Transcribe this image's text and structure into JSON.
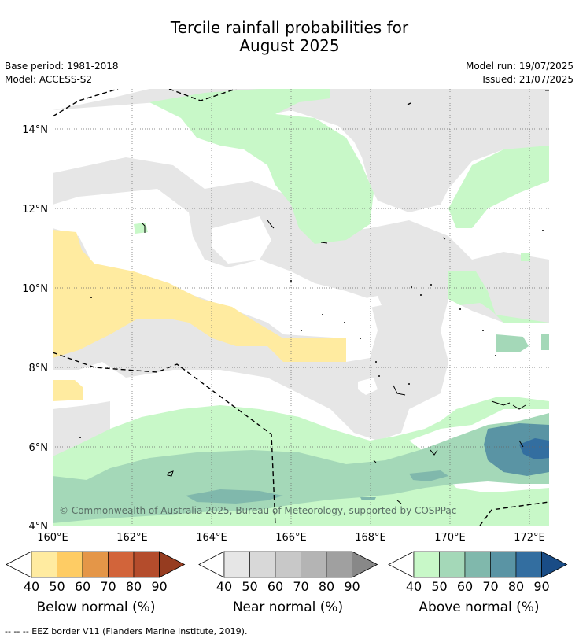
{
  "title_line1": "Tercile rainfall probabilities for",
  "title_line2": "August 2025",
  "base_period": "Base period: 1981-2018",
  "model": "Model: ACCESS-S2",
  "model_run": "Model run: 19/07/2025",
  "issued": "Issued: 21/07/2025",
  "copyright": "© Commonwealth of Australia 2025, Bureau of Meteorology, supported by COSPPac",
  "lat_labels": [
    "14°N",
    "12°N",
    "10°N",
    "8°N",
    "6°N",
    "4°N"
  ],
  "lon_labels": [
    "160°E",
    "162°E",
    "164°E",
    "166°E",
    "168°E",
    "170°E",
    "172°E"
  ],
  "colorbars": [
    {
      "label": "Below normal (%)",
      "ticks": [
        "40",
        "50",
        "60",
        "70",
        "80",
        "90"
      ],
      "colors": [
        "#ffeba0",
        "#fecc64",
        "#e49648",
        "#d2643a",
        "#b44c2c",
        "#963c20"
      ]
    },
    {
      "label": "Near normal (%)",
      "ticks": [
        "40",
        "50",
        "60",
        "70",
        "80",
        "90"
      ],
      "colors": [
        "#e6e6e6",
        "#d8d8d8",
        "#c8c8c8",
        "#b4b4b4",
        "#a0a0a0",
        "#888888"
      ]
    },
    {
      "label": "Above normal (%)",
      "ticks": [
        "40",
        "50",
        "60",
        "70",
        "80",
        "90"
      ],
      "colors": [
        "#c8f8c8",
        "#a4d8b8",
        "#80b8ac",
        "#5a94a4",
        "#336ea0",
        "#194c86"
      ]
    }
  ],
  "footer": "-- -- -- EEZ border V11 (Flanders Marine Institute, 2019)."
}
